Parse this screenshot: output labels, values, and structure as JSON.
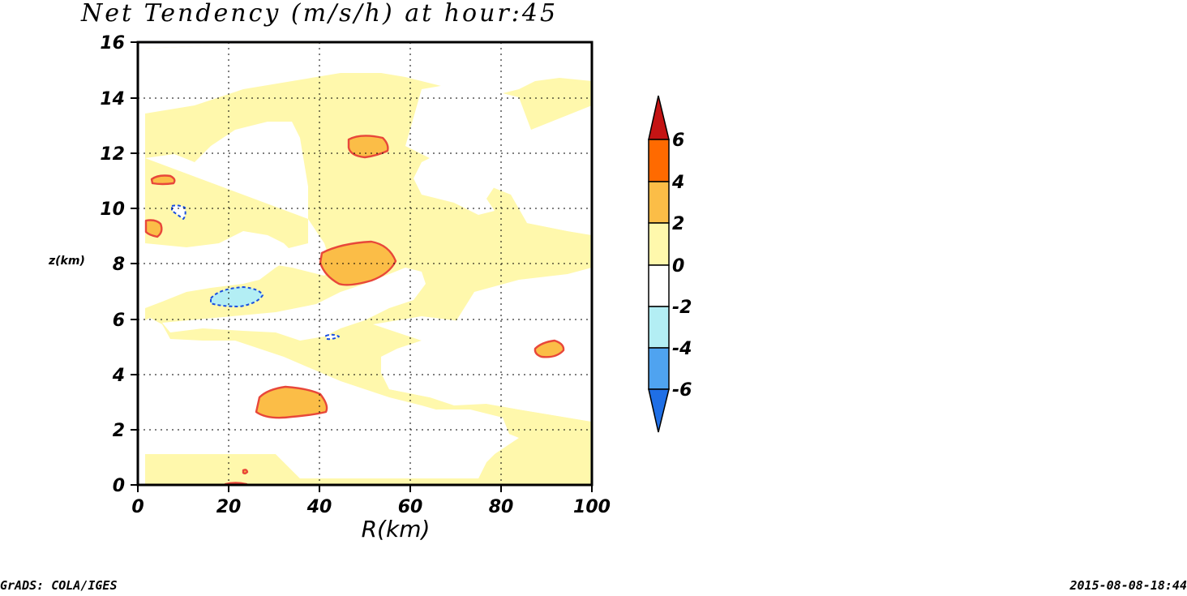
{
  "chart_data": {
    "type": "contour",
    "title": "Net Tendency (m/s/h) at hour:45",
    "xlabel": "R(km)",
    "ylabel": "z(km)",
    "xlim": [
      0,
      100
    ],
    "ylim": [
      0,
      16
    ],
    "x_ticks": [
      "0",
      "20",
      "40",
      "60",
      "80",
      "100"
    ],
    "y_ticks": [
      "0",
      "2",
      "4",
      "6",
      "8",
      "10",
      "12",
      "14",
      "16"
    ],
    "grid": "dotted",
    "colorbar": {
      "placement": "right",
      "levels": [
        -6,
        -4,
        -2,
        0,
        2,
        4,
        6
      ],
      "labels": [
        "-6",
        "-4",
        "-2",
        "0",
        "2",
        "4",
        "6"
      ],
      "colors": [
        "#1f6fe6",
        "#4fa3f0",
        "#b3eef4",
        "#ffffff",
        "#fff8ac",
        "#fbbd47",
        "#ff6a00",
        "#c41414"
      ]
    },
    "positive_features": [
      {
        "x": 48,
        "z": 12.2,
        "value_range": "2 to 4"
      },
      {
        "x": 6,
        "z": 11.0,
        "value_range": "2 to 4"
      },
      {
        "x": 3.5,
        "z": 9.4,
        "value_range": "2 to 4"
      },
      {
        "x": 49,
        "z": 8.0,
        "value_range": "2 to 4"
      },
      {
        "x": 91,
        "z": 5.0,
        "value_range": "2 to 4"
      },
      {
        "x": 34,
        "z": 3.0,
        "value_range": "2 to 4"
      },
      {
        "x": 24,
        "z": 0.05,
        "value_range": "2 to 4"
      }
    ],
    "negative_features": [
      {
        "x": 22,
        "z": 6.7,
        "value_range": "-4 to -2"
      },
      {
        "x": 9,
        "z": 9.9,
        "value_range": "-2"
      },
      {
        "x": 43,
        "z": 5.4,
        "value_range": "-2"
      }
    ]
  },
  "footer": {
    "left": "GrADS: COLA/IGES",
    "right": "2015-08-08-18:44"
  }
}
